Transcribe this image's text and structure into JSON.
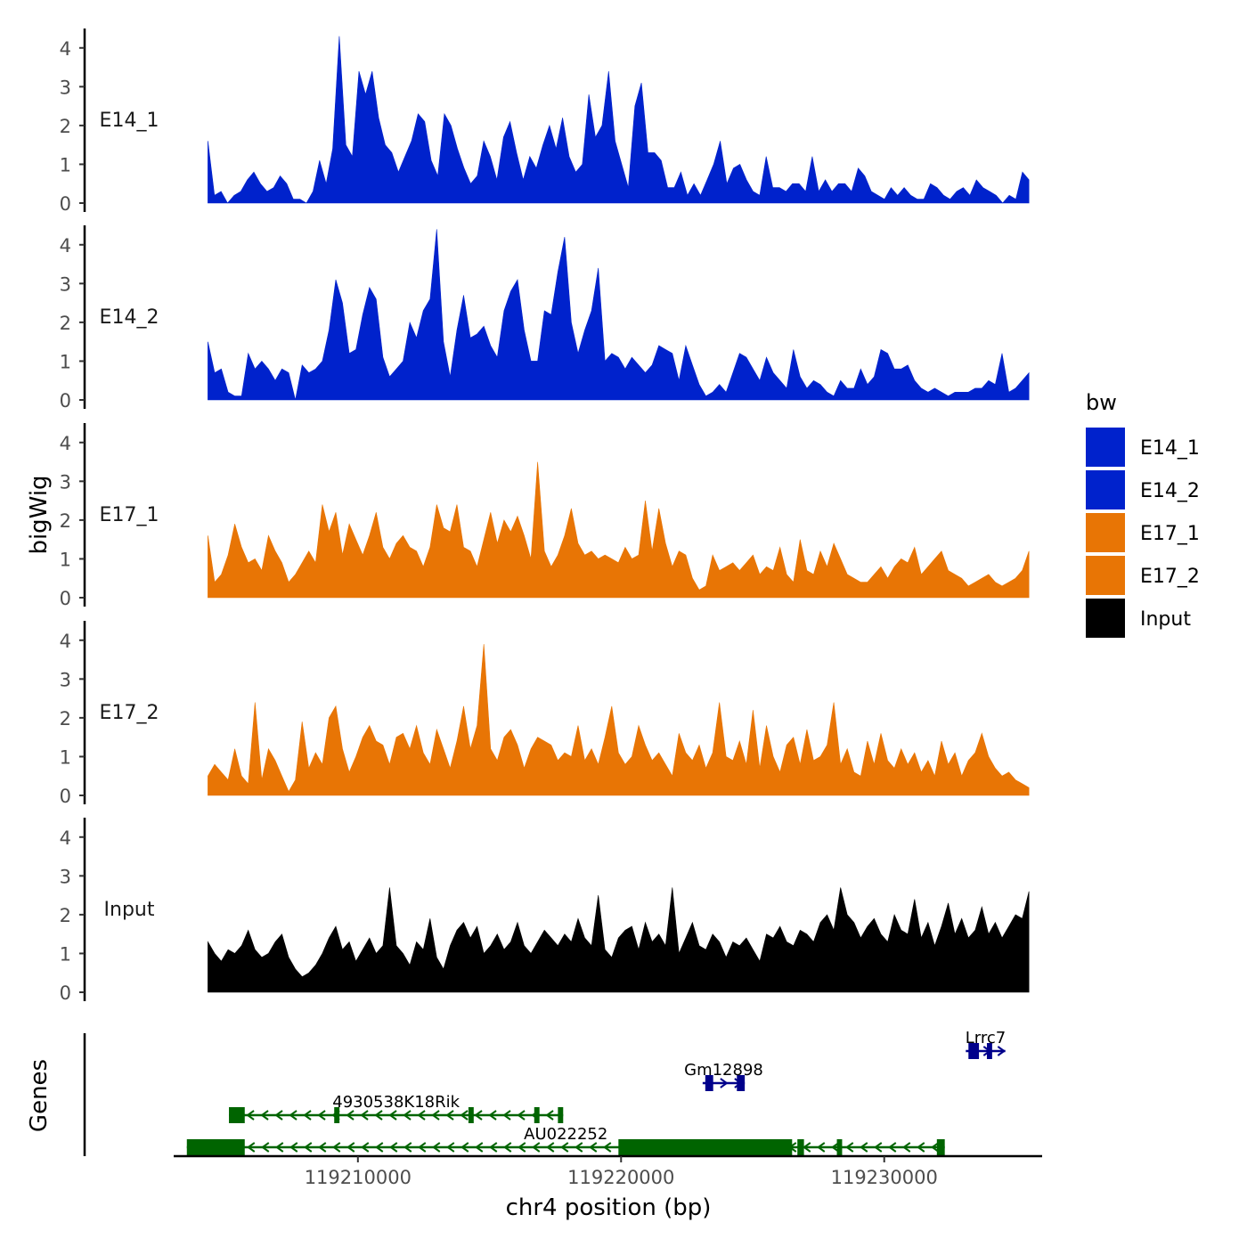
{
  "chart_data": {
    "type": "area",
    "xlabel": "chr4 position (bp)",
    "ylabel": "bigWig",
    "genes_label": "Genes",
    "xlim": [
      119203000,
      119236000
    ],
    "x_ticks": [
      119210000,
      119220000,
      119230000
    ],
    "x_tick_labels": [
      "119210000",
      "119220000",
      "119230000"
    ],
    "ylim": [
      0,
      4.5
    ],
    "y_ticks": [
      0,
      1,
      2,
      3,
      4
    ],
    "y_tick_labels": [
      "0",
      "1",
      "2",
      "3",
      "4"
    ],
    "data_range": [
      119204300,
      119235500
    ],
    "legend": {
      "title": "bw",
      "position": "right",
      "entries": [
        {
          "label": "E14_1",
          "color": "#0022CC"
        },
        {
          "label": "E14_2",
          "color": "#0022CC"
        },
        {
          "label": "E17_1",
          "color": "#E87505"
        },
        {
          "label": "E17_2",
          "color": "#E87505"
        },
        {
          "label": "Input",
          "color": "#000000"
        }
      ]
    },
    "series": [
      {
        "name": "E14_1",
        "color": "#0022CC",
        "values": [
          1.6,
          0.2,
          0.3,
          0,
          0.2,
          0.3,
          0.6,
          0.8,
          0.5,
          0.3,
          0.4,
          0.7,
          0.5,
          0.1,
          0.1,
          0,
          0.3,
          1.1,
          0.5,
          1.4,
          4.3,
          1.5,
          1.2,
          3.4,
          2.8,
          3.4,
          2.2,
          1.5,
          1.3,
          0.8,
          1.2,
          1.6,
          2.3,
          2.1,
          1.1,
          0.7,
          2.3,
          2.0,
          1.4,
          0.9,
          0.5,
          0.7,
          1.6,
          1.2,
          0.6,
          1.7,
          2.1,
          1.3,
          0.6,
          1.2,
          0.9,
          1.5,
          2.0,
          1.4,
          2.2,
          1.2,
          0.8,
          1.0,
          2.8,
          1.7,
          2.0,
          3.4,
          1.6,
          1.0,
          0.4,
          2.5,
          3.1,
          1.3,
          1.3,
          1.1,
          0.4,
          0.4,
          0.8,
          0.2,
          0.5,
          0.2,
          0.6,
          1.0,
          1.6,
          0.5,
          0.9,
          1.0,
          0.6,
          0.3,
          0.2,
          1.2,
          0.4,
          0.4,
          0.3,
          0.5,
          0.5,
          0.3,
          1.2,
          0.3,
          0.6,
          0.3,
          0.5,
          0.5,
          0.3,
          0.9,
          0.7,
          0.3,
          0.2,
          0.1,
          0.4,
          0.2,
          0.4,
          0.2,
          0.1,
          0.1,
          0.5,
          0.4,
          0.2,
          0.1,
          0.3,
          0.4,
          0.2,
          0.6,
          0.4,
          0.3,
          0.2,
          0,
          0.2,
          0.1,
          0.8,
          0.6
        ]
      },
      {
        "name": "E14_2",
        "color": "#0022CC",
        "values": [
          1.5,
          0.7,
          0.8,
          0.2,
          0.1,
          0.1,
          1.2,
          0.8,
          1.0,
          0.8,
          0.5,
          0.8,
          0.7,
          0,
          0.9,
          0.7,
          0.8,
          1.0,
          1.8,
          3.1,
          2.5,
          1.2,
          1.3,
          2.2,
          2.9,
          2.6,
          1.1,
          0.6,
          0.8,
          1.0,
          2.0,
          1.6,
          2.3,
          2.6,
          4.4,
          1.5,
          0.6,
          1.8,
          2.7,
          1.6,
          1.7,
          1.9,
          1.4,
          1.1,
          2.3,
          2.8,
          3.1,
          1.8,
          1.0,
          1.0,
          2.3,
          2.2,
          3.3,
          4.2,
          2.0,
          1.2,
          1.8,
          2.3,
          3.4,
          1.0,
          1.2,
          1.1,
          0.8,
          1.1,
          0.9,
          0.7,
          0.9,
          1.4,
          1.3,
          1.2,
          0.5,
          1.4,
          0.9,
          0.4,
          0.1,
          0.2,
          0.4,
          0.2,
          0.7,
          1.2,
          1.1,
          0.8,
          0.5,
          1.1,
          0.7,
          0.5,
          0.3,
          1.3,
          0.6,
          0.3,
          0.5,
          0.4,
          0.2,
          0.1,
          0.5,
          0.3,
          0.3,
          0.8,
          0.4,
          0.6,
          1.3,
          1.2,
          0.8,
          0.8,
          0.9,
          0.5,
          0.3,
          0.2,
          0.3,
          0.2,
          0.1,
          0.2,
          0.2,
          0.2,
          0.3,
          0.3,
          0.5,
          0.4,
          1.2,
          0.2,
          0.3,
          0.5,
          0.7
        ]
      },
      {
        "name": "E17_1",
        "color": "#E87505",
        "values": [
          1.6,
          0.4,
          0.6,
          1.1,
          1.9,
          1.3,
          0.9,
          1.0,
          0.7,
          1.6,
          1.2,
          0.9,
          0.4,
          0.6,
          0.9,
          1.2,
          0.9,
          2.4,
          1.7,
          2.2,
          1.1,
          1.9,
          1.5,
          1.1,
          1.6,
          2.2,
          1.3,
          1.0,
          1.4,
          1.6,
          1.3,
          1.2,
          0.8,
          1.3,
          2.4,
          1.8,
          1.7,
          2.4,
          1.3,
          1.2,
          0.8,
          1.5,
          2.2,
          1.4,
          2.0,
          1.7,
          2.1,
          1.6,
          1.0,
          3.5,
          1.2,
          0.8,
          1.1,
          1.6,
          2.3,
          1.4,
          1.1,
          1.2,
          1.0,
          1.1,
          1.0,
          0.9,
          1.3,
          1.0,
          1.1,
          2.5,
          1.2,
          2.3,
          1.4,
          0.8,
          1.2,
          1.1,
          0.5,
          0.2,
          0.3,
          1.1,
          0.7,
          0.8,
          0.9,
          0.7,
          0.9,
          1.1,
          0.6,
          0.8,
          0.7,
          1.3,
          0.6,
          0.4,
          1.5,
          0.7,
          0.6,
          1.2,
          0.8,
          1.4,
          1.0,
          0.6,
          0.5,
          0.4,
          0.4,
          0.6,
          0.8,
          0.5,
          0.8,
          1.0,
          0.9,
          1.3,
          0.6,
          0.8,
          1.0,
          1.2,
          0.7,
          0.6,
          0.5,
          0.3,
          0.4,
          0.5,
          0.6,
          0.4,
          0.3,
          0.4,
          0.5,
          0.7,
          1.2
        ]
      },
      {
        "name": "E17_2",
        "color": "#E87505",
        "values": [
          0.5,
          0.8,
          0.6,
          0.4,
          1.2,
          0.5,
          0.3,
          2.4,
          0.4,
          1.2,
          0.9,
          0.5,
          0.1,
          0.4,
          1.9,
          0.7,
          1.1,
          0.8,
          2.0,
          2.3,
          1.2,
          0.6,
          1.0,
          1.5,
          1.8,
          1.4,
          1.3,
          0.8,
          1.5,
          1.6,
          1.2,
          1.8,
          1.1,
          0.8,
          1.7,
          1.2,
          0.7,
          1.4,
          2.3,
          1.2,
          1.8,
          3.9,
          1.2,
          0.9,
          1.5,
          1.7,
          1.3,
          0.7,
          1.2,
          1.5,
          1.4,
          1.3,
          0.9,
          1.1,
          1.0,
          1.8,
          0.9,
          1.2,
          0.8,
          1.5,
          2.3,
          1.1,
          0.8,
          1.0,
          1.8,
          1.3,
          0.9,
          1.1,
          0.8,
          0.5,
          1.6,
          1.1,
          0.9,
          1.3,
          0.7,
          1.1,
          2.4,
          1.0,
          0.9,
          1.4,
          0.8,
          2.2,
          0.7,
          1.8,
          1.0,
          0.6,
          1.3,
          1.5,
          0.8,
          1.7,
          0.9,
          1.0,
          1.3,
          2.4,
          0.8,
          1.2,
          0.6,
          0.5,
          1.4,
          0.8,
          1.6,
          0.9,
          0.7,
          1.2,
          0.8,
          1.1,
          0.6,
          0.9,
          0.5,
          1.4,
          0.8,
          1.1,
          0.5,
          0.9,
          1.1,
          1.6,
          1.0,
          0.7,
          0.5,
          0.6,
          0.4,
          0.3,
          0.2
        ]
      },
      {
        "name": "Input",
        "color": "#000000",
        "values": [
          1.3,
          1.0,
          0.8,
          1.1,
          1.0,
          1.2,
          1.6,
          1.1,
          0.9,
          1.0,
          1.3,
          1.5,
          0.9,
          0.6,
          0.4,
          0.5,
          0.7,
          1.0,
          1.4,
          1.7,
          1.1,
          1.3,
          0.8,
          1.1,
          1.4,
          1.0,
          1.2,
          2.7,
          1.2,
          1.0,
          0.7,
          1.3,
          1.1,
          1.9,
          0.9,
          0.6,
          1.2,
          1.6,
          1.8,
          1.4,
          1.7,
          1.0,
          1.2,
          1.5,
          1.1,
          1.3,
          1.8,
          1.2,
          1.0,
          1.3,
          1.6,
          1.4,
          1.2,
          1.5,
          1.3,
          1.9,
          1.4,
          1.2,
          2.5,
          1.1,
          0.9,
          1.4,
          1.6,
          1.7,
          1.1,
          1.8,
          1.3,
          1.5,
          1.2,
          2.7,
          1.0,
          1.4,
          1.8,
          1.2,
          1.1,
          1.5,
          1.3,
          0.9,
          1.3,
          1.2,
          1.4,
          1.1,
          0.8,
          1.5,
          1.4,
          1.7,
          1.3,
          1.2,
          1.6,
          1.5,
          1.3,
          1.8,
          2.0,
          1.6,
          2.7,
          2.0,
          1.8,
          1.4,
          1.7,
          1.9,
          1.5,
          1.3,
          2.0,
          1.6,
          1.5,
          2.4,
          1.4,
          1.8,
          1.2,
          1.7,
          2.3,
          1.5,
          1.9,
          1.4,
          1.6,
          2.2,
          1.5,
          1.8,
          1.4,
          1.7,
          2.0,
          1.9,
          2.6
        ]
      }
    ],
    "genes": [
      {
        "name": "4930538K18Rik",
        "strand": "-",
        "color": "#006400",
        "row": 1,
        "start": 119205100,
        "end": 119217800,
        "exons": [
          [
            119205100,
            119205700
          ],
          [
            119209100,
            119209300
          ],
          [
            119214200,
            119214400
          ],
          [
            119216700,
            119216900
          ],
          [
            119217600,
            119217800
          ]
        ]
      },
      {
        "name": "AU022252",
        "strand": "-",
        "color": "#006400",
        "row": 0,
        "start": 119203500,
        "end": 119232300,
        "exons": [
          [
            119203500,
            119205700
          ],
          [
            119219900,
            119226500
          ],
          [
            119226700,
            119226950
          ],
          [
            119228200,
            119228400
          ],
          [
            119232000,
            119232300
          ]
        ]
      },
      {
        "name": "Gm12898",
        "strand": "+",
        "color": "#00008B",
        "row": 2,
        "start": 119223100,
        "end": 119224700,
        "exons": [
          [
            119223200,
            119223500
          ],
          [
            119224400,
            119224700
          ]
        ]
      },
      {
        "name": "Lrrc7",
        "strand": "+",
        "color": "#00008B",
        "row": 3,
        "start": 119233100,
        "end": 119234600,
        "exons": [
          [
            119233200,
            119233600
          ],
          [
            119233900,
            119234100
          ]
        ]
      }
    ]
  }
}
